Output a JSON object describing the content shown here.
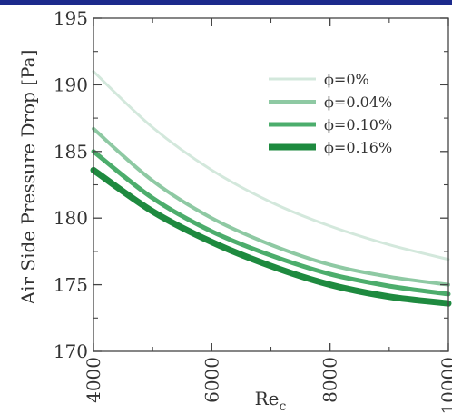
{
  "chart_data": {
    "type": "line",
    "xlabel": "Re",
    "xlabel_sub": "c",
    "ylabel": "Air Side Pressure Drop [Pa]",
    "xlim": [
      4000,
      10000
    ],
    "ylim": [
      170,
      195
    ],
    "xticks": [
      4000,
      6000,
      8000,
      10000
    ],
    "xtick_labels": [
      "4000",
      "6000",
      "8000",
      "10000"
    ],
    "yticks": [
      170,
      175,
      180,
      185,
      190,
      195
    ],
    "ytick_labels": [
      "170",
      "175",
      "180",
      "185",
      "190",
      "195"
    ],
    "grid": false,
    "legend_position": "top-right",
    "x": [
      4000,
      5000,
      6000,
      7000,
      8000,
      9000,
      10000
    ],
    "series": [
      {
        "name": "ϕ=0%",
        "color": "#d3e8dc",
        "values": [
          191.0,
          186.8,
          183.6,
          181.2,
          179.4,
          178.0,
          176.9
        ]
      },
      {
        "name": "ϕ=0.04%",
        "color": "#8ec9a3",
        "values": [
          186.7,
          182.8,
          180.0,
          178.0,
          176.5,
          175.6,
          175.0
        ]
      },
      {
        "name": "ϕ=0.10%",
        "color": "#4cad6c",
        "values": [
          185.0,
          181.5,
          179.0,
          177.2,
          175.8,
          174.9,
          174.3
        ]
      },
      {
        "name": "ϕ=0.16%",
        "color": "#1e8a3f",
        "values": [
          183.6,
          180.5,
          178.2,
          176.4,
          175.0,
          174.1,
          173.6
        ]
      }
    ]
  }
}
